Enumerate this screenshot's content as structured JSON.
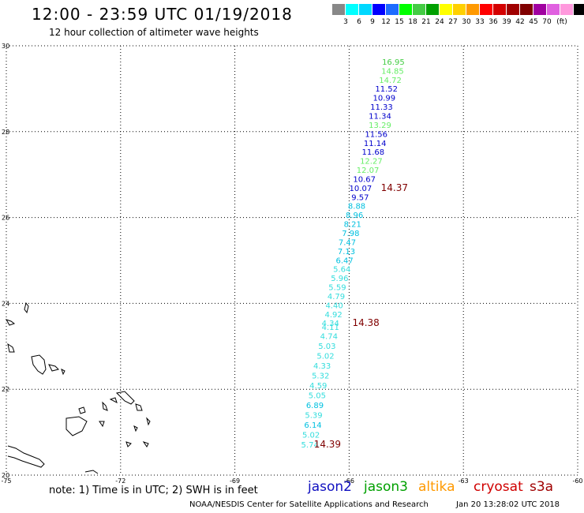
{
  "header": {
    "title": "12:00 - 23:59 UTC 01/19/2018",
    "subtitle": "12 hour collection of altimeter wave heights"
  },
  "legend": {
    "unit": "(ft)",
    "colors": [
      "#888888",
      "#00ffff",
      "#00d8ff",
      "#0000ff",
      "#1d6bff",
      "#00ff00",
      "#44cc44",
      "#00a000",
      "#ffff00",
      "#ffd000",
      "#ff9900",
      "#ff0000",
      "#d40000",
      "#a00000",
      "#800000",
      "#a000a0",
      "#e060e0",
      "#ff99dd",
      "#000000"
    ],
    "labels": [
      "3",
      "6",
      "9",
      "12",
      "15",
      "18",
      "21",
      "24",
      "27",
      "30",
      "33",
      "36",
      "39",
      "42",
      "45",
      "70"
    ]
  },
  "map": {
    "lon_range": [
      -75,
      -60
    ],
    "lat_range": [
      20,
      30
    ],
    "lon_ticks": [
      "-75",
      "-72",
      "-69",
      "-66",
      "-63",
      "-60"
    ],
    "lat_ticks": [
      "30",
      "28",
      "26",
      "24",
      "22",
      "20"
    ],
    "grid": "dotted"
  },
  "observations": [
    {
      "v": "16.95",
      "lat": 29.56,
      "lon": -64.84,
      "c": "#44cc44"
    },
    {
      "v": "14.85",
      "lat": 29.35,
      "lon": -64.86,
      "c": "#66ee66"
    },
    {
      "v": "14.72",
      "lat": 29.14,
      "lon": -64.92,
      "c": "#66ee66"
    },
    {
      "v": "11.52",
      "lat": 28.93,
      "lon": -65.02,
      "c": "#0000cc"
    },
    {
      "v": "10.99",
      "lat": 28.72,
      "lon": -65.08,
      "c": "#0000cc"
    },
    {
      "v": "11.33",
      "lat": 28.51,
      "lon": -65.15,
      "c": "#0000cc"
    },
    {
      "v": "11.34",
      "lat": 28.3,
      "lon": -65.19,
      "c": "#0000cc"
    },
    {
      "v": "13.29",
      "lat": 28.09,
      "lon": -65.19,
      "c": "#66ee66"
    },
    {
      "v": "11.56",
      "lat": 27.88,
      "lon": -65.29,
      "c": "#0000cc"
    },
    {
      "v": "11.14",
      "lat": 27.67,
      "lon": -65.32,
      "c": "#0000cc"
    },
    {
      "v": "11.68",
      "lat": 27.46,
      "lon": -65.37,
      "c": "#0000cc"
    },
    {
      "v": "12.27",
      "lat": 27.25,
      "lon": -65.42,
      "c": "#66ee66"
    },
    {
      "v": "12.07",
      "lat": 27.04,
      "lon": -65.51,
      "c": "#66ee66"
    },
    {
      "v": "10.67",
      "lat": 26.83,
      "lon": -65.6,
      "c": "#0000cc"
    },
    {
      "v": "10.07",
      "lat": 26.62,
      "lon": -65.7,
      "c": "#0000cc"
    },
    {
      "v": "9.57",
      "lat": 26.41,
      "lon": -65.71,
      "c": "#0000cc"
    },
    {
      "v": "8.88",
      "lat": 26.2,
      "lon": -65.8,
      "c": "#00c0e0"
    },
    {
      "v": "8.96",
      "lat": 25.99,
      "lon": -65.86,
      "c": "#00c0e0"
    },
    {
      "v": "8.21",
      "lat": 25.78,
      "lon": -65.91,
      "c": "#00c0e0"
    },
    {
      "v": "7.98",
      "lat": 25.57,
      "lon": -65.96,
      "c": "#00c0e0"
    },
    {
      "v": "7.47",
      "lat": 25.36,
      "lon": -66.05,
      "c": "#00c0e0"
    },
    {
      "v": "7.13",
      "lat": 25.15,
      "lon": -66.07,
      "c": "#00c0e0"
    },
    {
      "v": "6.47",
      "lat": 24.94,
      "lon": -66.12,
      "c": "#00c0e0"
    },
    {
      "v": "5.64",
      "lat": 24.73,
      "lon": -66.19,
      "c": "#33dddd"
    },
    {
      "v": "5.96",
      "lat": 24.52,
      "lon": -66.25,
      "c": "#33dddd"
    },
    {
      "v": "5.59",
      "lat": 24.31,
      "lon": -66.31,
      "c": "#33dddd"
    },
    {
      "v": "4.79",
      "lat": 24.1,
      "lon": -66.34,
      "c": "#33dddd"
    },
    {
      "v": "4.40",
      "lat": 23.89,
      "lon": -66.39,
      "c": "#33dddd"
    },
    {
      "v": "4.92",
      "lat": 23.68,
      "lon": -66.41,
      "c": "#33dddd"
    },
    {
      "v": "4.34",
      "lat": 23.47,
      "lon": -66.49,
      "c": "#33dddd"
    },
    {
      "v": "4.11",
      "lat": 23.38,
      "lon": -66.49,
      "c": "#33dddd"
    },
    {
      "v": "4.74",
      "lat": 23.17,
      "lon": -66.53,
      "c": "#33dddd"
    },
    {
      "v": "5.03",
      "lat": 22.94,
      "lon": -66.58,
      "c": "#33dddd"
    },
    {
      "v": "5.02",
      "lat": 22.71,
      "lon": -66.62,
      "c": "#33dddd"
    },
    {
      "v": "4.33",
      "lat": 22.48,
      "lon": -66.71,
      "c": "#33dddd"
    },
    {
      "v": "5.32",
      "lat": 22.25,
      "lon": -66.75,
      "c": "#33dddd"
    },
    {
      "v": "4.59",
      "lat": 22.02,
      "lon": -66.81,
      "c": "#33dddd"
    },
    {
      "v": "5.05",
      "lat": 21.79,
      "lon": -66.84,
      "c": "#33dddd"
    },
    {
      "v": "6.89",
      "lat": 21.56,
      "lon": -66.9,
      "c": "#00c0e0"
    },
    {
      "v": "5.39",
      "lat": 21.33,
      "lon": -66.93,
      "c": "#33dddd"
    },
    {
      "v": "6.14",
      "lat": 21.1,
      "lon": -66.95,
      "c": "#00c0e0"
    },
    {
      "v": "5.02",
      "lat": 20.87,
      "lon": -67.0,
      "c": "#33dddd"
    },
    {
      "v": "5.74",
      "lat": 20.64,
      "lon": -67.03,
      "c": "#33dddd"
    }
  ],
  "highlights": [
    {
      "v": "14.37",
      "lat": 26.62,
      "lon": -64.81,
      "c": "#800000"
    },
    {
      "v": "14.38",
      "lat": 23.47,
      "lon": -65.56,
      "c": "#800000"
    },
    {
      "v": "14.39",
      "lat": 20.64,
      "lon": -66.57,
      "c": "#800000"
    }
  ],
  "satellites": [
    {
      "name": "jason2",
      "color": "#1010c0"
    },
    {
      "name": "jason3",
      "color": "#00a000"
    },
    {
      "name": "altika",
      "color": "#ff9900"
    },
    {
      "name": "cryosat",
      "color": "#d00000"
    },
    {
      "name": "s3a",
      "color": "#a00000"
    }
  ],
  "footer": {
    "note": "note: 1) Time is in UTC; 2) SWH is in feet",
    "credit": "NOAA/NESDIS Center for Satellite Applications and Research",
    "timestamp": "Jan 20 13:28:02 UTC 2018"
  }
}
